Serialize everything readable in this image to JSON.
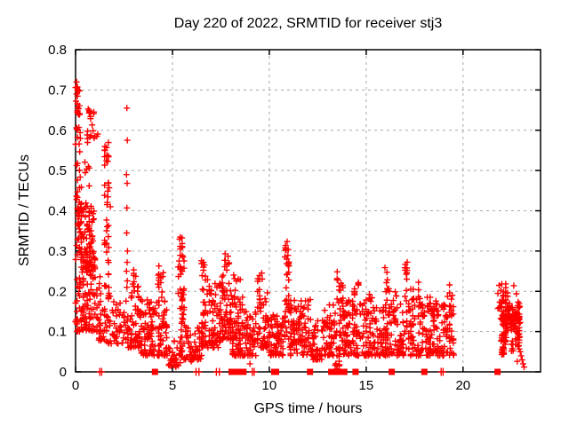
{
  "page": {
    "background": "#ffffff"
  },
  "chart_data": {
    "type": "scatter",
    "title": "Day 220 of 2022, SRMTID for receiver stj3",
    "xlabel": "GPS time / hours",
    "ylabel": "SRMTID / TECUs",
    "xlim": [
      0,
      24
    ],
    "ylim": [
      0,
      0.8
    ],
    "xticks": [
      0,
      5,
      10,
      15,
      20
    ],
    "xtick_labels": [
      "0",
      "5",
      "10",
      "15",
      "20"
    ],
    "yticks": [
      0,
      0.1,
      0.2,
      0.3,
      0.4,
      0.5,
      0.6,
      0.7,
      0.8
    ],
    "ytick_labels": [
      "0",
      "0.1",
      "0.2",
      "0.3",
      "0.4",
      "0.5",
      "0.6",
      "0.7",
      "0.8"
    ],
    "grid": true,
    "legend": "none",
    "marker": "plus",
    "marker_color": "#ff0000",
    "axis_color": "#000000",
    "grid_color": "#a8a8a8",
    "series_name": "SRMTID",
    "seed": 42,
    "cluster_fields": [
      "x_start_hr",
      "x_end_hr",
      "y_min_TECU",
      "y_max_TECU",
      "count",
      "bias u=uniform l=low m=mid"
    ],
    "clusters": [
      [
        0.02,
        0.25,
        0.44,
        0.72,
        24,
        "u"
      ],
      [
        0.03,
        0.22,
        0.63,
        0.67,
        9,
        "m"
      ],
      [
        0.55,
        0.95,
        0.62,
        0.665,
        8,
        "m"
      ],
      [
        0.6,
        1.15,
        0.55,
        0.615,
        12,
        "u"
      ],
      [
        0.3,
        0.95,
        0.45,
        0.53,
        7,
        "u"
      ],
      [
        0.02,
        0.3,
        0.27,
        0.44,
        32,
        "u"
      ],
      [
        0.1,
        0.95,
        0.3,
        0.42,
        65,
        "u"
      ],
      [
        0.25,
        1.05,
        0.24,
        0.3,
        55,
        "u"
      ],
      [
        0.02,
        1.3,
        0.1,
        0.24,
        105,
        "l"
      ],
      [
        1.45,
        1.78,
        0.18,
        0.47,
        30,
        "u"
      ],
      [
        1.5,
        1.72,
        0.5,
        0.578,
        12,
        "u"
      ],
      [
        1.2,
        2.35,
        0.07,
        0.2,
        65,
        "l"
      ],
      [
        2.4,
        3.4,
        0.06,
        0.2,
        75,
        "l"
      ],
      [
        2.95,
        3.3,
        0.2,
        0.255,
        11,
        "u"
      ],
      [
        3.4,
        4.75,
        0.04,
        0.18,
        125,
        "l"
      ],
      [
        4.25,
        4.55,
        0.18,
        0.267,
        13,
        "u"
      ],
      [
        4.78,
        5.28,
        0.012,
        0.08,
        24,
        "l"
      ],
      [
        5.3,
        5.62,
        0.05,
        0.25,
        32,
        "u"
      ],
      [
        5.33,
        5.58,
        0.25,
        0.335,
        20,
        "u"
      ],
      [
        5.32,
        5.5,
        0.012,
        0.05,
        7,
        "u"
      ],
      [
        5.62,
        6.5,
        0.03,
        0.12,
        50,
        "l"
      ],
      [
        6.5,
        7.5,
        0.06,
        0.22,
        105,
        "l"
      ],
      [
        6.5,
        6.82,
        0.22,
        0.29,
        10,
        "u"
      ],
      [
        7.5,
        8.1,
        0.08,
        0.24,
        70,
        "l"
      ],
      [
        7.65,
        7.97,
        0.24,
        0.295,
        9,
        "u"
      ],
      [
        8.1,
        8.68,
        0.04,
        0.2,
        65,
        "l"
      ],
      [
        8.15,
        8.5,
        0.2,
        0.25,
        6,
        "u"
      ],
      [
        8.68,
        9.32,
        0.04,
        0.15,
        50,
        "l"
      ],
      [
        9.32,
        9.95,
        0.06,
        0.2,
        55,
        "l"
      ],
      [
        9.38,
        9.65,
        0.2,
        0.25,
        7,
        "u"
      ],
      [
        9.95,
        10.68,
        0.04,
        0.15,
        65,
        "l"
      ],
      [
        10.75,
        11.05,
        0.08,
        0.24,
        24,
        "u"
      ],
      [
        10.8,
        11.02,
        0.24,
        0.332,
        19,
        "u"
      ],
      [
        11.05,
        12.2,
        0.04,
        0.18,
        105,
        "l"
      ],
      [
        12.2,
        12.78,
        0.03,
        0.13,
        42,
        "l"
      ],
      [
        12.78,
        13.38,
        0.04,
        0.17,
        50,
        "l"
      ],
      [
        13.45,
        13.82,
        0.05,
        0.25,
        38,
        "u"
      ],
      [
        13.42,
        13.68,
        0.01,
        0.05,
        9,
        "u"
      ],
      [
        13.82,
        15.1,
        0.04,
        0.18,
        105,
        "l"
      ],
      [
        14.35,
        14.62,
        0.18,
        0.235,
        8,
        "u"
      ],
      [
        15.1,
        15.8,
        0.04,
        0.16,
        55,
        "l"
      ],
      [
        15.15,
        15.38,
        0.16,
        0.2,
        5,
        "u"
      ],
      [
        15.8,
        19.55,
        0.04,
        0.17,
        290,
        "l"
      ],
      [
        15.95,
        16.18,
        0.17,
        0.26,
        10,
        "u"
      ],
      [
        16.35,
        16.58,
        0.15,
        0.2,
        6,
        "u"
      ],
      [
        16.9,
        17.12,
        0.17,
        0.275,
        12,
        "u"
      ],
      [
        17.25,
        17.48,
        0.15,
        0.21,
        6,
        "u"
      ],
      [
        17.6,
        17.82,
        0.16,
        0.225,
        8,
        "u"
      ],
      [
        18.15,
        18.38,
        0.14,
        0.2,
        6,
        "u"
      ],
      [
        18.55,
        18.72,
        0.13,
        0.18,
        5,
        "u"
      ],
      [
        19.2,
        19.48,
        0.15,
        0.225,
        9,
        "u"
      ],
      [
        21.78,
        21.98,
        0.15,
        0.225,
        8,
        "u"
      ],
      [
        21.95,
        22.35,
        0.17,
        0.228,
        13,
        "u"
      ],
      [
        21.95,
        22.95,
        0.09,
        0.18,
        125,
        "m"
      ],
      [
        21.95,
        22.25,
        0.04,
        0.1,
        20,
        "u"
      ],
      [
        21.98,
        22.12,
        0.042,
        0.062,
        12,
        "u"
      ],
      [
        22.5,
        22.95,
        0.05,
        0.1,
        18,
        "u"
      ]
    ],
    "points": [
      [
        0.05,
        0.72
      ],
      [
        0.07,
        0.706
      ],
      [
        0.1,
        0.7
      ],
      [
        0.05,
        0.69
      ],
      [
        0.13,
        0.697
      ],
      [
        2.65,
        0.655
      ],
      [
        2.67,
        0.575
      ],
      [
        2.63,
        0.49
      ],
      [
        2.66,
        0.468
      ],
      [
        2.65,
        0.407
      ],
      [
        2.64,
        0.345
      ],
      [
        2.68,
        0.3
      ],
      [
        2.66,
        0.272
      ],
      [
        2.63,
        0.25
      ],
      [
        2.67,
        0.226
      ],
      [
        2.65,
        0.21
      ],
      [
        5.0,
        0.032
      ],
      [
        5.08,
        0.024
      ],
      [
        5.18,
        0.015
      ],
      [
        5.97,
        0.026
      ],
      [
        5.55,
        0.13
      ],
      [
        5.62,
        0.115
      ],
      [
        5.68,
        0.1
      ],
      [
        5.75,
        0.09
      ],
      [
        5.82,
        0.075
      ],
      [
        5.88,
        0.06
      ],
      [
        5.95,
        0.05
      ],
      [
        6.0,
        0.04
      ],
      [
        6.05,
        0.03
      ],
      [
        9.0,
        0.02
      ],
      [
        13.5,
        0.008
      ],
      [
        22.62,
        0.214
      ],
      [
        22.75,
        0.194
      ],
      [
        22.72,
        0.1
      ],
      [
        22.8,
        0.082
      ],
      [
        22.88,
        0.065
      ],
      [
        22.95,
        0.05
      ],
      [
        23.0,
        0.04
      ],
      [
        23.05,
        0.03
      ],
      [
        22.8,
        0.026
      ],
      [
        23.1,
        0.02
      ],
      [
        23.15,
        0.012
      ]
    ],
    "zero_square_hours": [
      4.1,
      8.05,
      8.17,
      8.3,
      8.55,
      8.67,
      10.25,
      10.35,
      12.1,
      13.2,
      13.32,
      13.44,
      13.56,
      13.66,
      13.87,
      14.45,
      16.32,
      18.0,
      21.78
    ],
    "zero_tick_hours": [
      1.25,
      1.35,
      6.22,
      6.37,
      7.27,
      7.42,
      9.12,
      9.22,
      18.87,
      18.97
    ]
  }
}
